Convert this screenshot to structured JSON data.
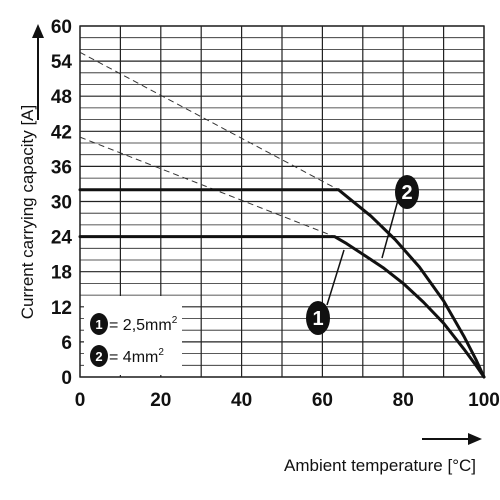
{
  "chart_data": {
    "type": "line",
    "xlabel": "Ambient temperature [°C]",
    "ylabel": "Current carrying capacity [A]",
    "xlim": [
      0,
      100
    ],
    "ylim": [
      0,
      60
    ],
    "x_ticks": [
      0,
      20,
      40,
      60,
      80,
      100
    ],
    "y_ticks": [
      0,
      6,
      12,
      18,
      24,
      30,
      36,
      42,
      48,
      54,
      60
    ],
    "grid": true,
    "legend_position": "bottom-left",
    "series": [
      {
        "marker": "1",
        "x": [
          0,
          63,
          66,
          70,
          75,
          80,
          85,
          90,
          95,
          98,
          100
        ],
        "y": [
          24,
          24,
          22.8,
          21,
          18.7,
          16,
          12.8,
          9.2,
          4.8,
          2,
          0
        ],
        "reference_line": {
          "x": [
            0,
            63
          ],
          "y": [
            41,
            24
          ]
        }
      },
      {
        "marker": "2",
        "x": [
          0,
          64,
          67,
          72,
          78,
          84,
          90,
          95,
          98,
          100
        ],
        "y": [
          32,
          32,
          30.3,
          27.5,
          23.5,
          18.8,
          13,
          7,
          3,
          0
        ],
        "reference_line": {
          "x": [
            0,
            64
          ],
          "y": [
            55.5,
            32
          ]
        }
      }
    ],
    "legend": [
      {
        "marker": "1",
        "label": "= 2,5mm",
        "superscript": "2"
      },
      {
        "marker": "2",
        "label": "= 4mm",
        "superscript": "2"
      }
    ]
  },
  "colors": {
    "curve": "#111111",
    "grid": "#222222",
    "background": "#ffffff"
  }
}
